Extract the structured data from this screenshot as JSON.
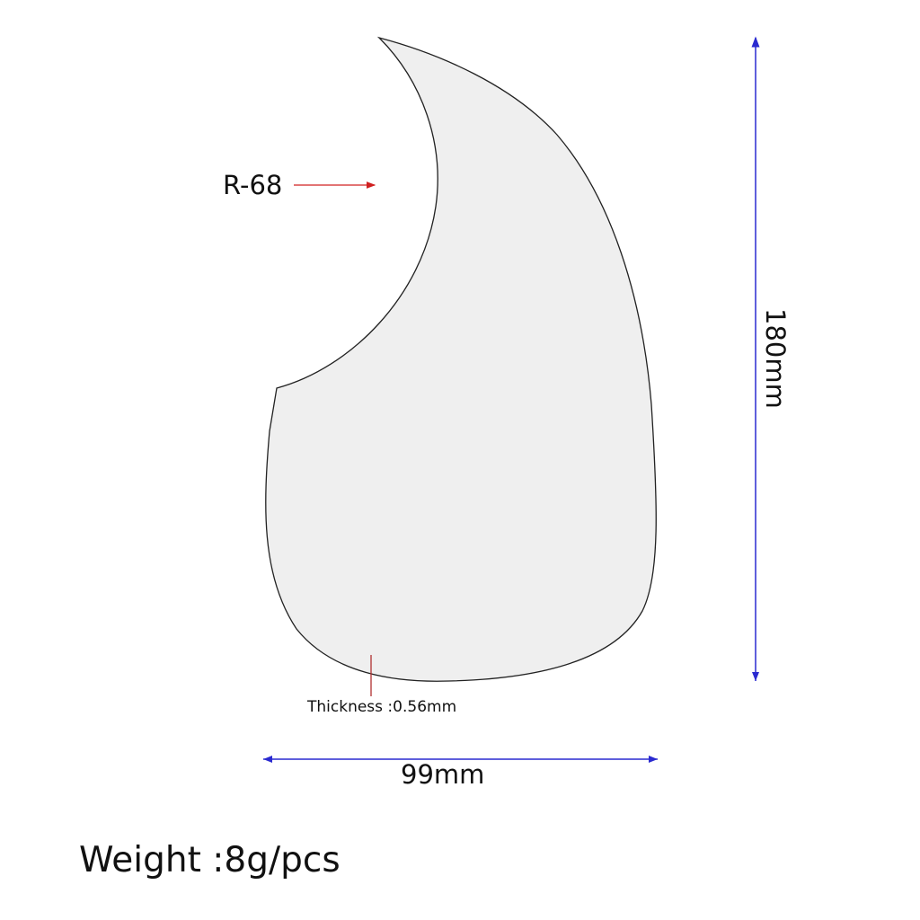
{
  "labels": {
    "radius": "R-68",
    "height": "180mm",
    "width": "99mm",
    "thickness": "Thickness :0.56mm",
    "weight": "Weight :8g/pcs"
  },
  "colors": {
    "shape_fill": "#efefef",
    "shape_outline": "#222222",
    "dimension_line": "#2a2ad0",
    "pointer": "#d02020"
  }
}
